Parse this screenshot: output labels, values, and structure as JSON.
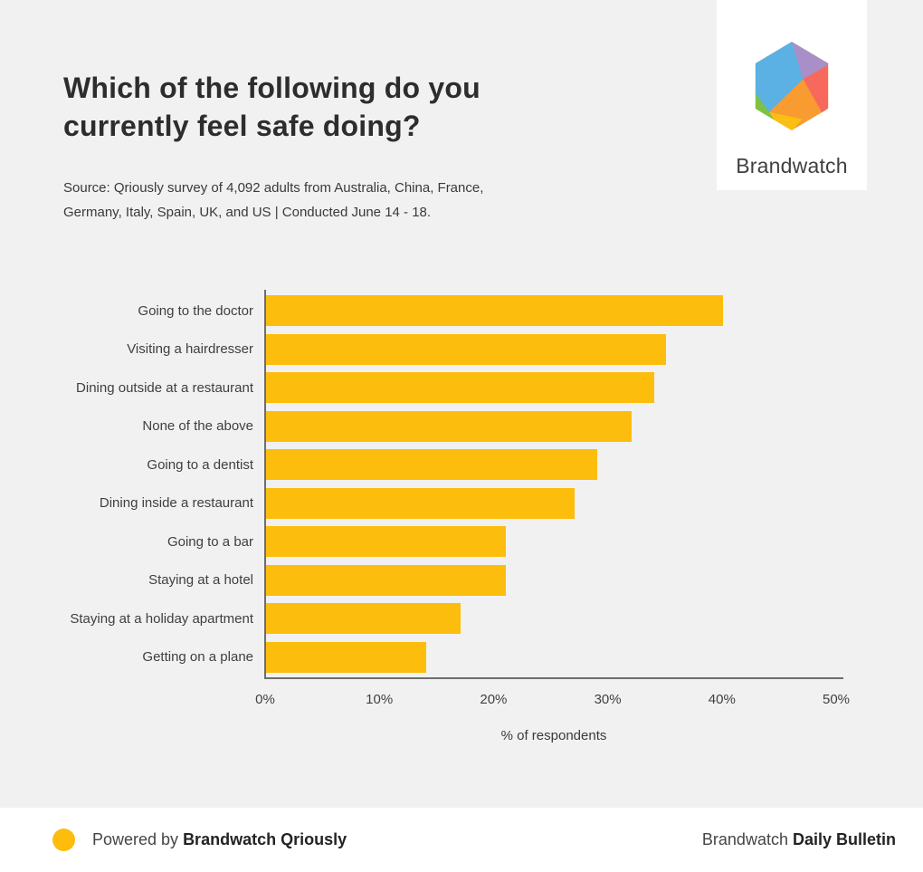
{
  "header": {
    "title": "Which of the following do you currently feel safe doing?",
    "source_line1": "Source: Qriously survey of 4,092 adults from Australia, China, France,",
    "source_line2": "Germany, Italy, Spain, UK, and US | Conducted June 14 - 18."
  },
  "logo": {
    "brand_name": "Brandwatch",
    "facet_colors": {
      "blue": "#5BB0E4",
      "purple": "#A98FC7",
      "red": "#F7695C",
      "orange": "#F89B30",
      "yellow": "#FBBE12",
      "green": "#7DC243"
    }
  },
  "chart_data": {
    "type": "bar",
    "orientation": "horizontal",
    "title": "Which of the following do you currently feel safe doing?",
    "categories": [
      "Going to the doctor",
      "Visiting a hairdresser",
      "Dining outside at a restaurant",
      "None of the above",
      "Going to a dentist",
      "Dining inside a restaurant",
      "Going to a bar",
      "Staying at a hotel",
      "Staying at a holiday apartment",
      "Getting on a plane"
    ],
    "values": [
      40,
      35,
      34,
      32,
      29,
      27,
      21,
      21,
      17,
      14
    ],
    "unit": "%",
    "xlabel": "% of respondents",
    "x_ticks": [
      "0%",
      "10%",
      "20%",
      "30%",
      "40%",
      "50%"
    ],
    "xlim": [
      0,
      50
    ],
    "grid": false,
    "legend": "none",
    "bar_color": "#FDBD0D",
    "axis_color": "#6e6e6e"
  },
  "footer": {
    "powered_by_prefix": "Powered by ",
    "powered_by_bold": "Brandwatch Qriously",
    "right_prefix": "Brandwatch ",
    "right_bold": "Daily Bulletin",
    "dot_color": "#FDBD0D"
  }
}
